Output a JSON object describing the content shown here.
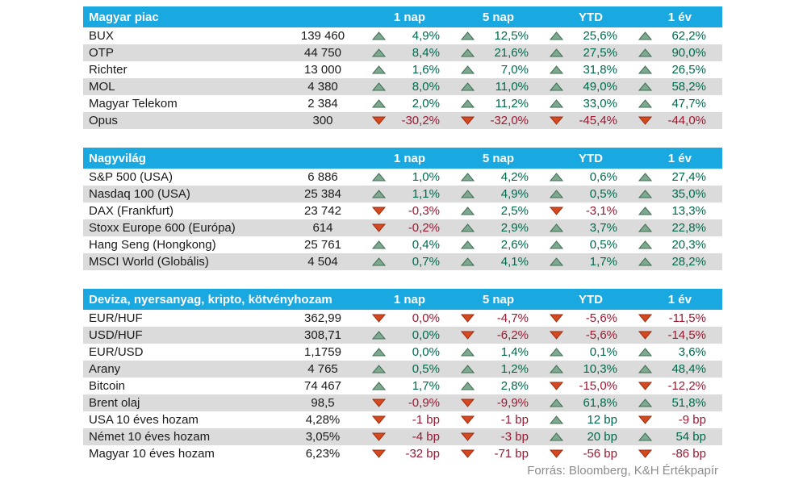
{
  "chart_data": [
    {
      "type": "table",
      "title": "Magyar piac",
      "columns": [
        "1 nap",
        "5 nap",
        "YTD",
        "1 év"
      ],
      "rows": [
        {
          "name": "BUX",
          "value": "139 460",
          "changes": [
            {
              "dir": "up",
              "text": "4,9%"
            },
            {
              "dir": "up",
              "text": "12,5%"
            },
            {
              "dir": "up",
              "text": "25,6%"
            },
            {
              "dir": "up",
              "text": "62,2%"
            }
          ]
        },
        {
          "name": "OTP",
          "value": "44 750",
          "changes": [
            {
              "dir": "up",
              "text": "8,4%"
            },
            {
              "dir": "up",
              "text": "21,6%"
            },
            {
              "dir": "up",
              "text": "27,5%"
            },
            {
              "dir": "up",
              "text": "90,0%"
            }
          ]
        },
        {
          "name": "Richter",
          "value": "13 000",
          "changes": [
            {
              "dir": "up",
              "text": "1,6%"
            },
            {
              "dir": "up",
              "text": "7,0%"
            },
            {
              "dir": "up",
              "text": "31,8%"
            },
            {
              "dir": "up",
              "text": "26,5%"
            }
          ]
        },
        {
          "name": "MOL",
          "value": "4 380",
          "changes": [
            {
              "dir": "up",
              "text": "8,0%"
            },
            {
              "dir": "up",
              "text": "11,0%"
            },
            {
              "dir": "up",
              "text": "49,0%"
            },
            {
              "dir": "up",
              "text": "58,2%"
            }
          ]
        },
        {
          "name": "Magyar Telekom",
          "value": "2 384",
          "changes": [
            {
              "dir": "up",
              "text": "2,0%"
            },
            {
              "dir": "up",
              "text": "11,2%"
            },
            {
              "dir": "up",
              "text": "33,0%"
            },
            {
              "dir": "up",
              "text": "47,7%"
            }
          ]
        },
        {
          "name": "Opus",
          "value": "300",
          "changes": [
            {
              "dir": "down",
              "text": "-30,2%"
            },
            {
              "dir": "down",
              "text": "-32,0%"
            },
            {
              "dir": "down",
              "text": "-45,4%"
            },
            {
              "dir": "down",
              "text": "-44,0%"
            }
          ]
        }
      ]
    },
    {
      "type": "table",
      "title": "Nagyvilág",
      "columns": [
        "1 nap",
        "5 nap",
        "YTD",
        "1 év"
      ],
      "rows": [
        {
          "name": "S&P 500 (USA)",
          "value": "6 886",
          "changes": [
            {
              "dir": "up",
              "text": "1,0%"
            },
            {
              "dir": "up",
              "text": "4,2%"
            },
            {
              "dir": "up",
              "text": "0,6%"
            },
            {
              "dir": "up",
              "text": "27,4%"
            }
          ]
        },
        {
          "name": "Nasdaq 100 (USA)",
          "value": "25 384",
          "changes": [
            {
              "dir": "up",
              "text": "1,1%"
            },
            {
              "dir": "up",
              "text": "4,9%"
            },
            {
              "dir": "up",
              "text": "0,5%"
            },
            {
              "dir": "up",
              "text": "35,0%"
            }
          ]
        },
        {
          "name": "DAX (Frankfurt)",
          "value": "23 742",
          "changes": [
            {
              "dir": "down",
              "text": "-0,3%"
            },
            {
              "dir": "up",
              "text": "2,5%"
            },
            {
              "dir": "down",
              "text": "-3,1%"
            },
            {
              "dir": "up",
              "text": "13,3%"
            }
          ]
        },
        {
          "name": "Stoxx Europe 600 (Európa)",
          "value": "614",
          "changes": [
            {
              "dir": "down",
              "text": "-0,2%"
            },
            {
              "dir": "up",
              "text": "2,9%"
            },
            {
              "dir": "up",
              "text": "3,7%"
            },
            {
              "dir": "up",
              "text": "22,8%"
            }
          ]
        },
        {
          "name": "Hang Seng (Hongkong)",
          "value": "25 761",
          "changes": [
            {
              "dir": "up",
              "text": "0,4%"
            },
            {
              "dir": "up",
              "text": "2,6%"
            },
            {
              "dir": "up",
              "text": "0,5%"
            },
            {
              "dir": "up",
              "text": "20,3%"
            }
          ]
        },
        {
          "name": "MSCI World (Globális)",
          "value": "4 504",
          "changes": [
            {
              "dir": "up",
              "text": "0,7%"
            },
            {
              "dir": "up",
              "text": "4,1%"
            },
            {
              "dir": "up",
              "text": "1,7%"
            },
            {
              "dir": "up",
              "text": "28,2%"
            }
          ]
        }
      ]
    },
    {
      "type": "table",
      "title": "Deviza, nyersanyag, kripto, kötvényhozam",
      "columns": [
        "1 nap",
        "5 nap",
        "YTD",
        "1 év"
      ],
      "rows": [
        {
          "name": "EUR/HUF",
          "value": "362,99",
          "changes": [
            {
              "dir": "down",
              "text": "0,0%"
            },
            {
              "dir": "down",
              "text": "-4,7%"
            },
            {
              "dir": "down",
              "text": "-5,6%"
            },
            {
              "dir": "down",
              "text": "-11,5%"
            }
          ]
        },
        {
          "name": "USD/HUF",
          "value": "308,71",
          "changes": [
            {
              "dir": "up",
              "text": "0,0%"
            },
            {
              "dir": "down",
              "text": "-6,2%"
            },
            {
              "dir": "down",
              "text": "-5,6%"
            },
            {
              "dir": "down",
              "text": "-14,5%"
            }
          ]
        },
        {
          "name": "EUR/USD",
          "value": "1,1759",
          "changes": [
            {
              "dir": "up",
              "text": "0,0%"
            },
            {
              "dir": "up",
              "text": "1,4%"
            },
            {
              "dir": "up",
              "text": "0,1%"
            },
            {
              "dir": "up",
              "text": "3,6%"
            }
          ]
        },
        {
          "name": "Arany",
          "value": "4 765",
          "changes": [
            {
              "dir": "up",
              "text": "0,5%"
            },
            {
              "dir": "up",
              "text": "1,2%"
            },
            {
              "dir": "up",
              "text": "10,3%"
            },
            {
              "dir": "up",
              "text": "48,4%"
            }
          ]
        },
        {
          "name": "Bitcoin",
          "value": "74 467",
          "changes": [
            {
              "dir": "up",
              "text": "1,7%"
            },
            {
              "dir": "up",
              "text": "2,8%"
            },
            {
              "dir": "down",
              "text": "-15,0%"
            },
            {
              "dir": "down",
              "text": "-12,2%"
            }
          ]
        },
        {
          "name": "Brent olaj",
          "value": "98,5",
          "changes": [
            {
              "dir": "down",
              "text": "-0,9%"
            },
            {
              "dir": "down",
              "text": "-9,9%"
            },
            {
              "dir": "up",
              "text": "61,8%"
            },
            {
              "dir": "up",
              "text": "51,8%"
            }
          ]
        },
        {
          "name": "USA 10 éves hozam",
          "value": "4,28%",
          "changes": [
            {
              "dir": "down",
              "text": "-1 bp"
            },
            {
              "dir": "down",
              "text": "-1 bp"
            },
            {
              "dir": "up",
              "text": "12 bp"
            },
            {
              "dir": "down",
              "text": "-9 bp"
            }
          ]
        },
        {
          "name": "Német 10 éves hozam",
          "value": "3,05%",
          "changes": [
            {
              "dir": "down",
              "text": "-4 bp"
            },
            {
              "dir": "down",
              "text": "-3 bp"
            },
            {
              "dir": "up",
              "text": "20 bp"
            },
            {
              "dir": "up",
              "text": "54 bp"
            }
          ]
        },
        {
          "name": "Magyar 10 éves hozam",
          "value": "6,23%",
          "changes": [
            {
              "dir": "down",
              "text": "-32 bp"
            },
            {
              "dir": "down",
              "text": "-71 bp"
            },
            {
              "dir": "down",
              "text": "-56 bp"
            },
            {
              "dir": "down",
              "text": "-86 bp"
            }
          ]
        }
      ]
    }
  ],
  "footer": "Forrás: Bloomberg, K&H Értékpapír",
  "colors": {
    "header_bg": "#1aa8e1",
    "header_text": "#ffffff",
    "stripe": "#dbdbdb",
    "up_text": "#00694d",
    "down_text": "#991a31",
    "up_triangle_fill": "#7fa890",
    "up_triangle_stroke": "#3f6f52",
    "down_triangle_fill": "#d4491f",
    "down_triangle_stroke": "#9e2d10",
    "footer_text": "#8c8c8c"
  }
}
